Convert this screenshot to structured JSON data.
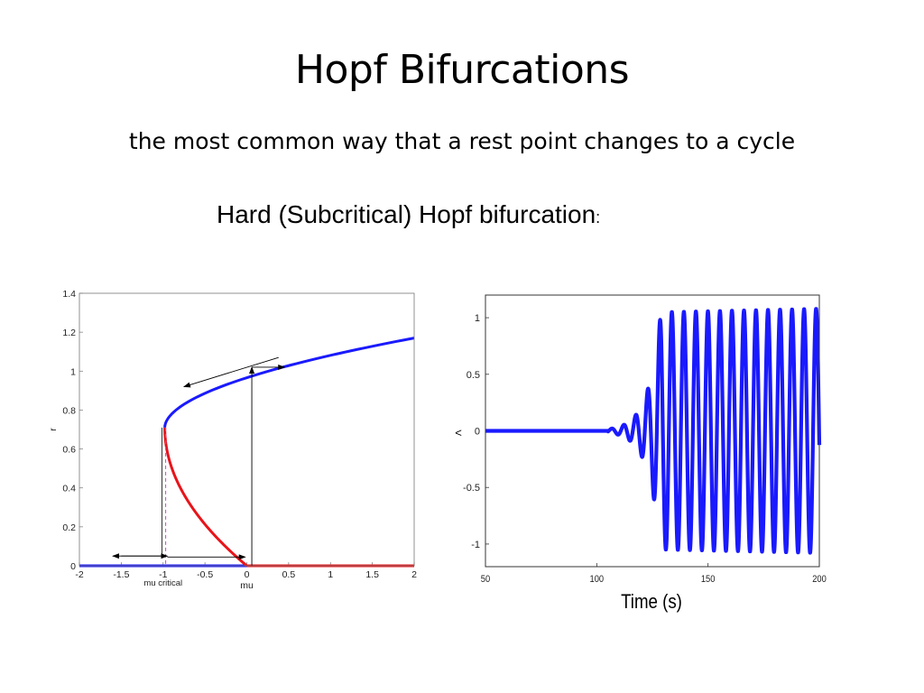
{
  "slide": {
    "title": "Hopf Bifurcations",
    "subtitle": "the most common way that a rest point changes to a cycle",
    "section_label": "Hard (Subcritical) Hopf bifurcation",
    "section_colon": ":"
  },
  "colors": {
    "stable": "#1a1aff",
    "unstable": "#e8141a",
    "critical": "#d040d0",
    "axis": "#000000"
  },
  "chart_data": [
    {
      "type": "line",
      "title": "",
      "xlabel": "mu",
      "ylabel": "r",
      "xlim": [
        -2,
        2
      ],
      "ylim": [
        0,
        1.4
      ],
      "xticks": [
        "-2",
        "-1.5",
        "-1",
        "-0.5",
        "0",
        "0.5",
        "1",
        "1.5",
        "2"
      ],
      "yticks": [
        "0",
        "0.2",
        "0.4",
        "0.6",
        "0.8",
        "1",
        "1.2",
        "1.4"
      ],
      "annotation": "mu critical",
      "critical_mu": -0.98,
      "series": [
        {
          "color": "blue",
          "style": "solid",
          "x": [
            -2,
            0
          ],
          "y": [
            0,
            0
          ]
        },
        {
          "color": "red",
          "style": "solid",
          "x": [
            0,
            2
          ],
          "y": [
            0,
            0
          ]
        },
        {
          "color": "red",
          "style": "solid",
          "x": [
            0,
            -0.98
          ],
          "y": [
            0,
            0.71
          ]
        },
        {
          "color": "blue",
          "style": "solid",
          "x": [
            -0.98,
            2
          ],
          "y": [
            0.71,
            1.17
          ]
        }
      ]
    },
    {
      "type": "line",
      "title": "",
      "xlabel": "Time (s)",
      "ylabel": "",
      "xlim": [
        50,
        200
      ],
      "ylim": [
        -1.2,
        1.2
      ],
      "xticks": [
        "50",
        "100",
        "150",
        "200"
      ],
      "yticks": [
        "1",
        "0.5",
        "0",
        "-0.5",
        "-1"
      ],
      "series": [
        {
          "color": "blue",
          "style": "solid",
          "description_points": {
            "quiet_until": 105,
            "growth_until": 130,
            "amplitude": 1.05,
            "period": 5.4
          }
        }
      ]
    }
  ]
}
